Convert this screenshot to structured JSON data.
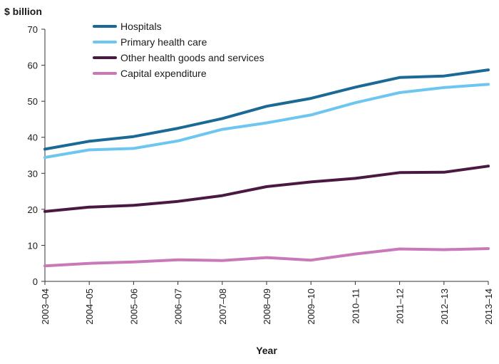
{
  "chart_data": {
    "type": "line",
    "ylabel": "$ billion",
    "xlabel": "Year",
    "ylim": [
      0,
      70
    ],
    "yticks": [
      0,
      10,
      20,
      30,
      40,
      50,
      60,
      70
    ],
    "categories": [
      "2003–04",
      "2004–05",
      "2005–06",
      "2006–07",
      "2007–08",
      "2008–09",
      "2009–10",
      "2010–11",
      "2011–12",
      "2012–13",
      "2013–14"
    ],
    "grid": false,
    "legend_position": "top-left",
    "series": [
      {
        "name": "Hospitals",
        "color": "#1b6a96",
        "values": [
          36.7,
          38.9,
          40.2,
          42.5,
          45.2,
          48.6,
          50.8,
          53.9,
          56.6,
          57.0,
          58.7
        ]
      },
      {
        "name": "Primary health care",
        "color": "#6cc6f0",
        "values": [
          34.4,
          36.5,
          36.9,
          39.0,
          42.2,
          44.0,
          46.2,
          49.6,
          52.4,
          53.8,
          54.7
        ]
      },
      {
        "name": "Other health goods and services",
        "color": "#4a1942",
        "values": [
          19.4,
          20.6,
          21.1,
          22.2,
          23.8,
          26.3,
          27.6,
          28.6,
          30.2,
          30.3,
          32.0
        ]
      },
      {
        "name": "Capital expenditure",
        "color": "#c978b8",
        "values": [
          4.3,
          5.0,
          5.4,
          6.0,
          5.8,
          6.6,
          5.9,
          7.6,
          9.0,
          8.8,
          9.1
        ]
      }
    ]
  }
}
